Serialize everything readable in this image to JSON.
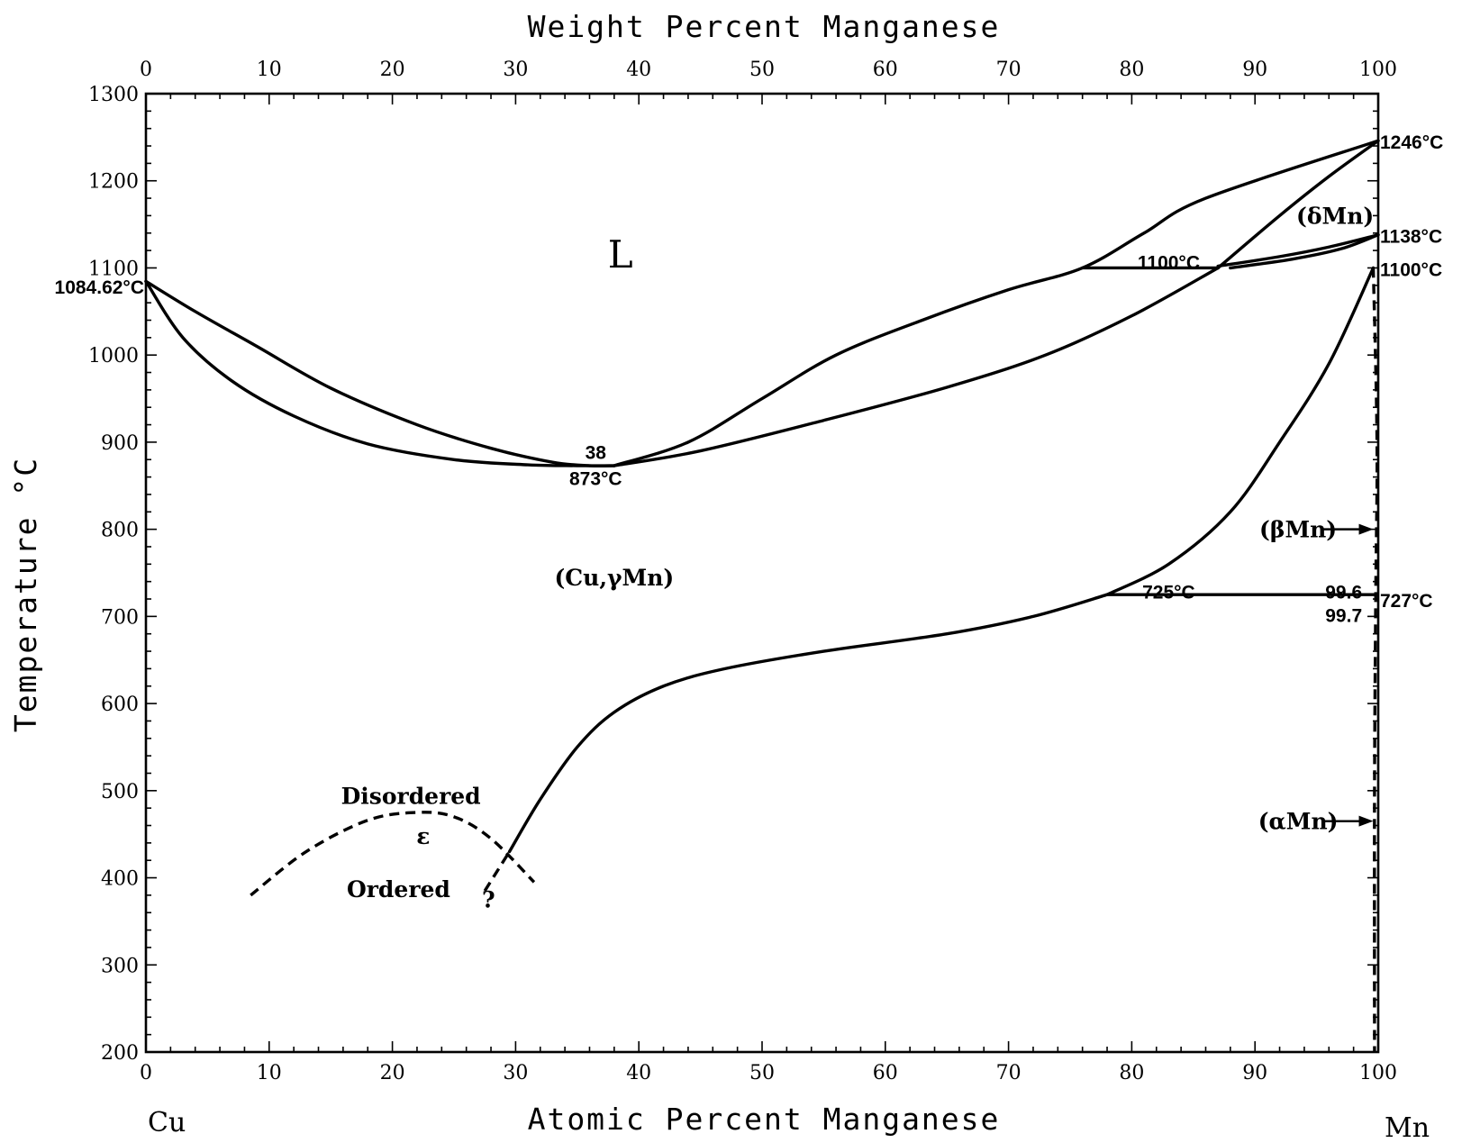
{
  "chart_data": {
    "type": "line",
    "title": "",
    "xlabel": "Atomic Percent Manganese",
    "x2label": "Weight Percent Manganese",
    "ylabel": "Temperature °C",
    "xlim": [
      0,
      100
    ],
    "ylim": [
      200,
      1300
    ],
    "x_ticks": [
      0,
      10,
      20,
      30,
      40,
      50,
      60,
      70,
      80,
      90,
      100
    ],
    "x_tick_labels": [
      "0",
      "10",
      "20",
      "30",
      "40",
      "50",
      "60",
      "70",
      "80",
      "90",
      "100"
    ],
    "x2_ticks_at_pct": [
      0,
      10,
      20,
      30,
      40,
      50,
      60,
      70,
      80,
      90,
      100
    ],
    "x2_tick_labels": [
      "0",
      "10",
      "20",
      "30",
      "40",
      "50",
      "60",
      "70",
      "80",
      "90",
      "100"
    ],
    "y_ticks": [
      200,
      300,
      400,
      500,
      600,
      700,
      800,
      900,
      1000,
      1100,
      1200,
      1300
    ],
    "y_tick_labels": [
      "200",
      "300",
      "400",
      "500",
      "600",
      "700",
      "800",
      "900",
      "1000",
      "1100",
      "1200",
      "1300"
    ],
    "grid": false,
    "element_left": "Cu",
    "element_right": "Mn",
    "series": [
      {
        "style": "solid",
        "x": [
          0,
          4,
          9,
          15,
          22,
          28,
          33,
          36,
          38
        ],
        "y": [
          1084.62,
          1050,
          1010,
          962,
          920,
          893,
          877,
          873,
          873
        ]
      },
      {
        "style": "solid",
        "x": [
          0,
          3,
          7,
          12,
          18,
          25,
          31,
          35,
          38
        ],
        "y": [
          1084.62,
          1020,
          970,
          930,
          898,
          880,
          874,
          873,
          873
        ]
      },
      {
        "style": "solid",
        "x": [
          38,
          44,
          50,
          56,
          63,
          70,
          76,
          81,
          86,
          100
        ],
        "y": [
          873,
          900,
          950,
          1000,
          1040,
          1075,
          1100,
          1140,
          1180,
          1246
        ]
      },
      {
        "style": "solid",
        "x": [
          38,
          45,
          55,
          65,
          73,
          80,
          87
        ],
        "y": [
          873,
          890,
          925,
          963,
          1000,
          1045,
          1100
        ]
      },
      {
        "style": "solid",
        "x": [
          87,
          92,
          96,
          100
        ],
        "y": [
          1100,
          1160,
          1205,
          1246
        ]
      },
      {
        "style": "solid",
        "x": [
          87,
          92,
          96,
          100
        ],
        "y": [
          1102,
          1113,
          1124,
          1138
        ]
      },
      {
        "style": "solid",
        "x": [
          88,
          93,
          97,
          100
        ],
        "y": [
          1100,
          1110,
          1122,
          1138
        ]
      },
      {
        "style": "solid",
        "x": [
          76,
          87
        ],
        "y": [
          1100,
          1100
        ]
      },
      {
        "style": "solid",
        "x": [
          29.5,
          32,
          35,
          38,
          42,
          47,
          55,
          65,
          72,
          78
        ],
        "y": [
          430,
          490,
          550,
          590,
          620,
          640,
          660,
          680,
          700,
          725
        ]
      },
      {
        "style": "solid",
        "x": [
          78,
          83,
          88,
          92,
          96,
          99.6
        ],
        "y": [
          725,
          760,
          820,
          900,
          990,
          1100
        ]
      },
      {
        "style": "solid",
        "x": [
          78,
          99.7
        ],
        "y": [
          725,
          725
        ]
      },
      {
        "style": "dashed",
        "x": [
          99.6,
          99.9,
          99.8,
          99.7,
          99.7
        ],
        "y": [
          1100,
          900,
          727,
          500,
          200
        ]
      },
      {
        "style": "dashed",
        "x": [
          8.5,
          13,
          18,
          22,
          25,
          28,
          31.5
        ],
        "y": [
          380,
          430,
          466,
          475,
          470,
          445,
          395
        ]
      },
      {
        "style": "dashed",
        "x": [
          27.5,
          29.5
        ],
        "y": [
          385,
          430
        ]
      }
    ],
    "annotations": [
      {
        "text": "L",
        "x": 38.5,
        "y": 1110
      },
      {
        "text": "(Cu,γMn)",
        "x": 38,
        "y": 745
      },
      {
        "text": "38",
        "x": 36.5,
        "y": 890
      },
      {
        "text": "873°C",
        "x": 36.5,
        "y": 860
      },
      {
        "text": "1084.62°C",
        "x": -1,
        "y": 1080
      },
      {
        "text": "1100°C",
        "x": 83,
        "y": 1108
      },
      {
        "text": "725°C",
        "x": 83,
        "y": 730
      },
      {
        "text": "99.6",
        "x": 97.2,
        "y": 730
      },
      {
        "text": "99.7",
        "x": 97.2,
        "y": 703
      },
      {
        "text": "1246°C",
        "x": 101,
        "y": 1246
      },
      {
        "text": "1138°C",
        "x": 101,
        "y": 1138
      },
      {
        "text": "1100°C",
        "x": 101,
        "y": 1100
      },
      {
        "text": "727°C",
        "x": 101,
        "y": 720
      },
      {
        "text": "(δMn)",
        "x": 96.5,
        "y": 1160
      },
      {
        "text": "(βMn)",
        "x": 93.5,
        "y": 800
      },
      {
        "text": "(αMn)",
        "x": 93.5,
        "y": 465
      },
      {
        "text": "Disordered",
        "x": 21.5,
        "y": 494
      },
      {
        "text": "ε",
        "x": 22.5,
        "y": 448
      },
      {
        "text": "Ordered",
        "x": 20.5,
        "y": 387
      },
      {
        "text": "?",
        "x": 27.8,
        "y": 375
      }
    ]
  }
}
